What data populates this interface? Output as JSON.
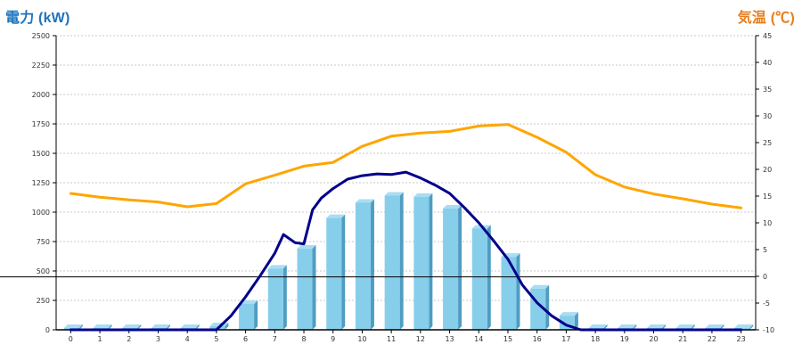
{
  "chart_data": {
    "type": "bar+line",
    "left_axis_label": "電力 (kW)",
    "right_axis_label": "気温 (℃)",
    "left_axis": {
      "min": 0,
      "max": 2500,
      "step": 250,
      "ticks": [
        "0",
        "250",
        "500",
        "750",
        "1000",
        "1250",
        "1500",
        "1750",
        "2000",
        "2250",
        "2500"
      ]
    },
    "right_axis": {
      "min": -10,
      "max": 45,
      "step": 5,
      "ticks": [
        "-10",
        "-5",
        "0",
        "5",
        "10",
        "15",
        "20",
        "25",
        "30",
        "35",
        "40",
        "45"
      ]
    },
    "grid": true,
    "categories": [
      "0",
      "1",
      "2",
      "3",
      "4",
      "5",
      "6",
      "7",
      "8",
      "9",
      "10",
      "11",
      "12",
      "13",
      "14",
      "15",
      "16",
      "17",
      "18",
      "19",
      "20",
      "21",
      "22",
      "23"
    ],
    "series": [
      {
        "kind": "bar",
        "axis": "left",
        "color": "#87CEEB",
        "values": [
          0,
          0,
          0,
          0,
          0,
          30,
          220,
          520,
          690,
          950,
          1080,
          1140,
          1130,
          1030,
          860,
          620,
          350,
          120,
          0,
          0,
          0,
          0,
          0,
          0
        ]
      },
      {
        "kind": "line",
        "axis": "left",
        "color": "#00008B",
        "x": [
          0,
          1,
          2,
          3,
          4,
          5,
          5.5,
          6,
          6.5,
          7,
          7.3,
          7.7,
          8,
          8.3,
          8.6,
          9,
          9.5,
          10,
          10.5,
          11,
          11.5,
          12,
          12.5,
          13,
          13.5,
          14,
          14.5,
          15,
          15.5,
          16,
          16.5,
          17,
          17.5,
          17.8,
          18,
          19,
          20,
          21,
          22,
          23
        ],
        "values": [
          0,
          0,
          0,
          0,
          0,
          0,
          120,
          280,
          460,
          650,
          810,
          740,
          730,
          1020,
          1120,
          1200,
          1280,
          1310,
          1325,
          1320,
          1340,
          1290,
          1230,
          1160,
          1040,
          910,
          760,
          600,
          380,
          230,
          120,
          40,
          0,
          0,
          0,
          0,
          0,
          0,
          0,
          0
        ]
      },
      {
        "kind": "line",
        "axis": "right",
        "color": "#FFA500",
        "x": [
          0,
          1,
          2,
          3,
          4,
          5,
          6,
          7,
          8,
          9,
          10,
          11,
          12,
          13,
          14,
          15,
          16,
          17,
          18,
          19,
          20,
          21,
          22,
          23
        ],
        "values": [
          15.5,
          14.8,
          14.3,
          13.9,
          13.0,
          13.6,
          17.3,
          18.9,
          20.6,
          21.3,
          24.3,
          26.2,
          26.8,
          27.1,
          28.1,
          28.4,
          26.0,
          23.2,
          19.0,
          16.7,
          15.4,
          14.5,
          13.5,
          12.8
        ]
      }
    ],
    "reference_line_value": 450,
    "colors": {
      "left_title": "#1E73BE",
      "right_title": "#E87E1C",
      "bar_front": "#87CEEB",
      "bar_side": "#4F9DC2",
      "bar_top": "#A9DDF2",
      "grid": "#C8C8C8",
      "axis": "#000000"
    }
  }
}
